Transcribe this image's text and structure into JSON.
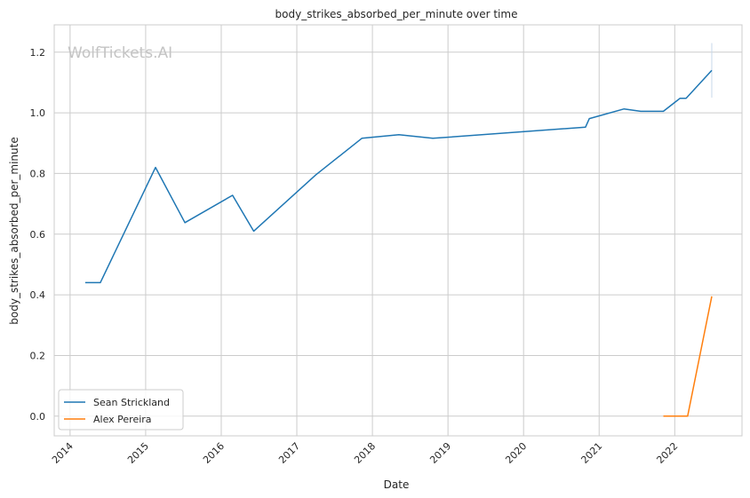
{
  "chart_data": {
    "type": "line",
    "title": "body_strikes_absorbed_per_minute over time",
    "xlabel": "Date",
    "ylabel": "body_strikes_absorbed_per_minute",
    "watermark": "WolfTickets.AI",
    "x_ticks": [
      "2014",
      "2015",
      "2016",
      "2017",
      "2018",
      "2019",
      "2020",
      "2021",
      "2022"
    ],
    "y_ticks": [
      "0.0",
      "0.2",
      "0.4",
      "0.6",
      "0.8",
      "1.0",
      "1.2"
    ],
    "xlim": [
      2013.79,
      2022.89
    ],
    "ylim": [
      -0.065,
      1.29
    ],
    "grid": true,
    "legend_position": "lower-left",
    "series": [
      {
        "name": "Sean Strickland",
        "color": "#1f77b4",
        "x": [
          2014.2,
          2014.4,
          2015.13,
          2015.52,
          2016.15,
          2016.43,
          2017.25,
          2017.86,
          2018.35,
          2018.8,
          2020.82,
          2020.87,
          2021.33,
          2021.55,
          2021.85,
          2022.07,
          2022.15,
          2022.49
        ],
        "y": [
          0.44,
          0.44,
          0.82,
          0.638,
          0.728,
          0.61,
          0.795,
          0.916,
          0.928,
          0.916,
          0.953,
          0.981,
          1.013,
          1.005,
          1.005,
          1.048,
          1.048,
          1.14
        ]
      },
      {
        "name": "Alex Pereira",
        "color": "#ff7f0e",
        "x": [
          2021.85,
          2022.17,
          2022.49
        ],
        "y": [
          0.0,
          0.0,
          0.395
        ]
      }
    ],
    "error_bar": {
      "x": 2022.49,
      "low": 1.05,
      "high": 1.23,
      "color": "#c8d8ea"
    }
  }
}
